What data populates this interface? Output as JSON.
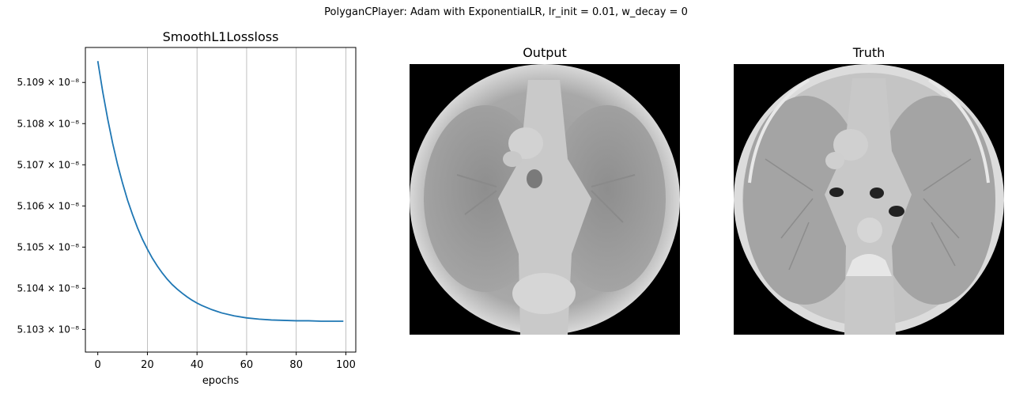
{
  "figure": {
    "suptitle": "PolyganCPlayer: Adam with ExponentialLR, lr_init = 0.01, w_decay =  0"
  },
  "chart_data": {
    "type": "line",
    "title": "SmoothL1Lossloss",
    "xlabel": "epochs",
    "ylabel": "",
    "xlim": [
      -5,
      104
    ],
    "ylim": [
      5.10245e-08,
      5.10985e-08
    ],
    "grid": "x",
    "colors": {
      "line": "#1f77b4",
      "grid": "#b0b0b0"
    },
    "x_ticks": [
      0,
      20,
      40,
      60,
      80,
      100
    ],
    "x_tick_labels": [
      "0",
      "20",
      "40",
      "60",
      "80",
      "100"
    ],
    "y_ticks": [
      5.103e-08,
      5.104e-08,
      5.105e-08,
      5.106e-08,
      5.107e-08,
      5.108e-08,
      5.109e-08
    ],
    "y_tick_labels": [
      "5.103 × 10⁻⁸",
      "5.104 × 10⁻⁸",
      "5.105 × 10⁻⁸",
      "5.106 × 10⁻⁸",
      "5.107 × 10⁻⁸",
      "5.108 × 10⁻⁸",
      "5.109 × 10⁻⁸"
    ],
    "series": [
      {
        "x": [
          0,
          2,
          4,
          6,
          8,
          10,
          12,
          14,
          16,
          18,
          20,
          22,
          24,
          26,
          28,
          30,
          32,
          34,
          36,
          38,
          40,
          42,
          44,
          46,
          48,
          50,
          55,
          60,
          65,
          70,
          75,
          80,
          85,
          90,
          95,
          99
        ],
        "values": [
          5.10952e-08,
          5.10877e-08,
          5.10811e-08,
          5.10752e-08,
          5.107e-08,
          5.10655e-08,
          5.10614e-08,
          5.10579e-08,
          5.10547e-08,
          5.10519e-08,
          5.10495e-08,
          5.10473e-08,
          5.10454e-08,
          5.10437e-08,
          5.10422e-08,
          5.10409e-08,
          5.10398e-08,
          5.10388e-08,
          5.10379e-08,
          5.10371e-08,
          5.10364e-08,
          5.10358e-08,
          5.10353e-08,
          5.10348e-08,
          5.10344e-08,
          5.1034e-08,
          5.10333e-08,
          5.10328e-08,
          5.10325e-08,
          5.10323e-08,
          5.10322e-08,
          5.10321e-08,
          5.10321e-08,
          5.1032e-08,
          5.1032e-08,
          5.1032e-08
        ]
      }
    ]
  },
  "images": [
    {
      "title": "Output",
      "kind": "reconstructed-ct-scan"
    },
    {
      "title": "Truth",
      "kind": "ground-truth-ct-scan"
    }
  ]
}
